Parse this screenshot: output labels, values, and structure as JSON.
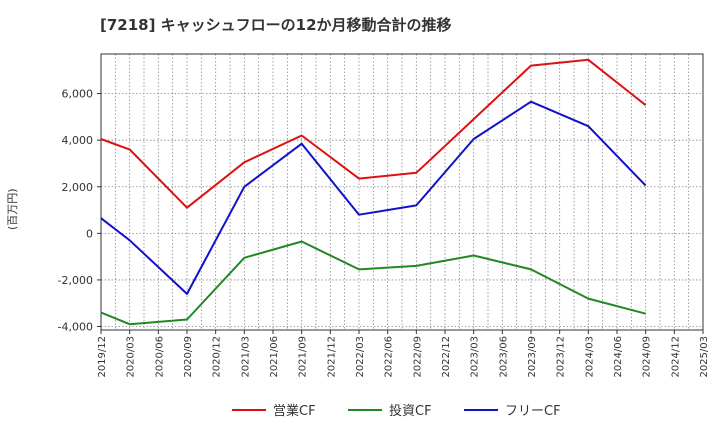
{
  "title": "[7218]  キャッシュフローの12か月移動合計の推移",
  "y_unit": "(百万円)",
  "colors": {
    "operating": "#dd1111",
    "investing": "#228822",
    "free": "#1111cc",
    "grid": "#888888",
    "axis": "#333333"
  },
  "chart_data": {
    "type": "line",
    "x_labels": [
      "2019/12",
      "2020/03",
      "2020/06",
      "2020/09",
      "2020/12",
      "2021/03",
      "2021/06",
      "2021/09",
      "2021/12",
      "2022/03",
      "2022/06",
      "2022/09",
      "2022/12",
      "2023/03",
      "2023/06",
      "2023/09",
      "2023/12",
      "2024/03",
      "2024/06",
      "2024/09",
      "2024/12",
      "2025/03"
    ],
    "y_ticks": [
      -4000,
      -2000,
      0,
      2000,
      4000,
      6000
    ],
    "y_tick_labels": [
      "-4,000",
      "-2,000",
      "0",
      "2,000",
      "4,000",
      "6,000"
    ],
    "ylim": [
      -4150,
      7700
    ],
    "series": [
      {
        "name": "営業CF",
        "color": "#dd1111",
        "points": [
          [
            "2019/12",
            4050
          ],
          [
            "2020/03",
            3600
          ],
          [
            "2020/09",
            1100
          ],
          [
            "2021/03",
            3050
          ],
          [
            "2021/09",
            4200
          ],
          [
            "2022/03",
            2350
          ],
          [
            "2022/09",
            2600
          ],
          [
            "2023/09",
            7200
          ],
          [
            "2024/03",
            7450
          ],
          [
            "2024/09",
            5500
          ]
        ]
      },
      {
        "name": "投資CF",
        "color": "#228822",
        "points": [
          [
            "2019/12",
            -3400
          ],
          [
            "2020/03",
            -3900
          ],
          [
            "2020/09",
            -3700
          ],
          [
            "2021/03",
            -1050
          ],
          [
            "2021/09",
            -350
          ],
          [
            "2022/03",
            -1550
          ],
          [
            "2022/09",
            -1400
          ],
          [
            "2023/03",
            -950
          ],
          [
            "2023/09",
            -1550
          ],
          [
            "2024/03",
            -2800
          ],
          [
            "2024/09",
            -3450
          ]
        ]
      },
      {
        "name": "フリーCF",
        "color": "#1111cc",
        "points": [
          [
            "2019/12",
            650
          ],
          [
            "2020/03",
            -300
          ],
          [
            "2020/09",
            -2600
          ],
          [
            "2021/03",
            2000
          ],
          [
            "2021/09",
            3850
          ],
          [
            "2022/03",
            800
          ],
          [
            "2022/09",
            1200
          ],
          [
            "2023/03",
            4050
          ],
          [
            "2023/09",
            5650
          ],
          [
            "2024/03",
            4600
          ],
          [
            "2024/09",
            2050
          ]
        ]
      }
    ]
  }
}
